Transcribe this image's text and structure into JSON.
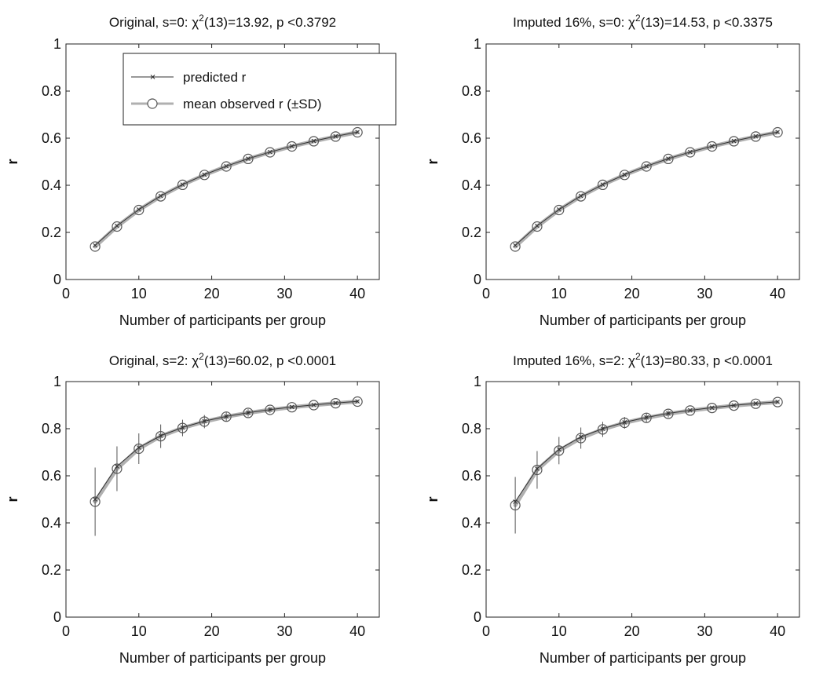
{
  "chart_data": [
    {
      "type": "line",
      "title_main": "Original, s=0: χ",
      "title_sup": "2",
      "title_rest": "(13)=13.92, p <0.3792",
      "xlabel": "Number of participants per group",
      "ylabel": "r",
      "xlim": [
        0,
        43
      ],
      "ylim": [
        0,
        1
      ],
      "xticks": [
        "0",
        "10",
        "20",
        "30",
        "40"
      ],
      "yticks": [
        "0",
        "0.2",
        "0.4",
        "0.6",
        "0.8",
        "1"
      ],
      "legend": {
        "position": "top-left",
        "entries": [
          "predicted r",
          "mean observed r (±SD)"
        ]
      },
      "x": [
        4,
        7,
        10,
        13,
        16,
        19,
        22,
        25,
        28,
        31,
        34,
        37,
        40
      ],
      "series": [
        {
          "name": "predicted r",
          "values": [
            0.145,
            0.228,
            0.297,
            0.355,
            0.403,
            0.445,
            0.481,
            0.513,
            0.541,
            0.566,
            0.588,
            0.608,
            0.626
          ]
        },
        {
          "name": "mean observed r (±SD)",
          "values": [
            0.14,
            0.225,
            0.295,
            0.353,
            0.402,
            0.444,
            0.48,
            0.512,
            0.54,
            0.565,
            0.587,
            0.607,
            0.625
          ],
          "sd": [
            0.005,
            0.005,
            0.005,
            0.005,
            0.005,
            0.005,
            0.005,
            0.005,
            0.005,
            0.005,
            0.005,
            0.005,
            0.005
          ]
        }
      ]
    },
    {
      "type": "line",
      "title_main": "Imputed 16%, s=0: χ",
      "title_sup": "2",
      "title_rest": "(13)=14.53, p <0.3375",
      "xlabel": "Number of participants per group",
      "ylabel": "r",
      "xlim": [
        0,
        43
      ],
      "ylim": [
        0,
        1
      ],
      "xticks": [
        "0",
        "10",
        "20",
        "30",
        "40"
      ],
      "yticks": [
        "0",
        "0.2",
        "0.4",
        "0.6",
        "0.8",
        "1"
      ],
      "x": [
        4,
        7,
        10,
        13,
        16,
        19,
        22,
        25,
        28,
        31,
        34,
        37,
        40
      ],
      "series": [
        {
          "name": "predicted r",
          "values": [
            0.145,
            0.228,
            0.297,
            0.355,
            0.403,
            0.445,
            0.481,
            0.513,
            0.541,
            0.566,
            0.588,
            0.608,
            0.626
          ]
        },
        {
          "name": "mean observed r (±SD)",
          "values": [
            0.14,
            0.225,
            0.295,
            0.353,
            0.402,
            0.444,
            0.48,
            0.512,
            0.54,
            0.565,
            0.587,
            0.607,
            0.625
          ],
          "sd": [
            0.005,
            0.005,
            0.005,
            0.005,
            0.005,
            0.005,
            0.005,
            0.005,
            0.005,
            0.005,
            0.005,
            0.005,
            0.005
          ]
        }
      ]
    },
    {
      "type": "line",
      "title_main": "Original, s=2: χ",
      "title_sup": "2",
      "title_rest": "(13)=60.02, p <0.0001",
      "xlabel": "Number of participants per group",
      "ylabel": "r",
      "xlim": [
        0,
        43
      ],
      "ylim": [
        0,
        1
      ],
      "xticks": [
        "0",
        "10",
        "20",
        "30",
        "40"
      ],
      "yticks": [
        "0",
        "0.2",
        "0.4",
        "0.6",
        "0.8",
        "1"
      ],
      "x": [
        4,
        7,
        10,
        13,
        16,
        19,
        22,
        25,
        28,
        31,
        34,
        37,
        40
      ],
      "series": [
        {
          "name": "predicted r",
          "values": [
            0.5,
            0.64,
            0.72,
            0.77,
            0.805,
            0.832,
            0.852,
            0.868,
            0.881,
            0.892,
            0.901,
            0.909,
            0.916
          ]
        },
        {
          "name": "mean observed r (±SD)",
          "values": [
            0.49,
            0.63,
            0.715,
            0.768,
            0.803,
            0.83,
            0.851,
            0.867,
            0.88,
            0.891,
            0.9,
            0.908,
            0.915
          ],
          "sd": [
            0.145,
            0.095,
            0.065,
            0.05,
            0.035,
            0.028,
            0.02,
            0.016,
            0.013,
            0.011,
            0.01,
            0.009,
            0.008
          ]
        }
      ]
    },
    {
      "type": "line",
      "title_main": "Imputed 16%, s=2: χ",
      "title_sup": "2",
      "title_rest": "(13)=80.33, p <0.0001",
      "xlabel": "Number of participants per group",
      "ylabel": "r",
      "xlim": [
        0,
        43
      ],
      "ylim": [
        0,
        1
      ],
      "xticks": [
        "0",
        "10",
        "20",
        "30",
        "40"
      ],
      "yticks": [
        "0",
        "0.2",
        "0.4",
        "0.6",
        "0.8",
        "1"
      ],
      "x": [
        4,
        7,
        10,
        13,
        16,
        19,
        22,
        25,
        28,
        31,
        34,
        37,
        40
      ],
      "series": [
        {
          "name": "predicted r",
          "values": [
            0.49,
            0.63,
            0.712,
            0.765,
            0.8,
            0.827,
            0.848,
            0.865,
            0.878,
            0.889,
            0.899,
            0.907,
            0.914
          ]
        },
        {
          "name": "mean observed r (±SD)",
          "values": [
            0.475,
            0.625,
            0.707,
            0.76,
            0.797,
            0.825,
            0.846,
            0.863,
            0.877,
            0.888,
            0.898,
            0.906,
            0.913
          ],
          "sd": [
            0.12,
            0.08,
            0.058,
            0.045,
            0.032,
            0.025,
            0.019,
            0.015,
            0.012,
            0.011,
            0.01,
            0.009,
            0.008
          ]
        }
      ]
    }
  ],
  "colors": {
    "predicted": "#333333",
    "observed": "#555555",
    "band": "#b0b0b0",
    "axis": "#222222"
  }
}
